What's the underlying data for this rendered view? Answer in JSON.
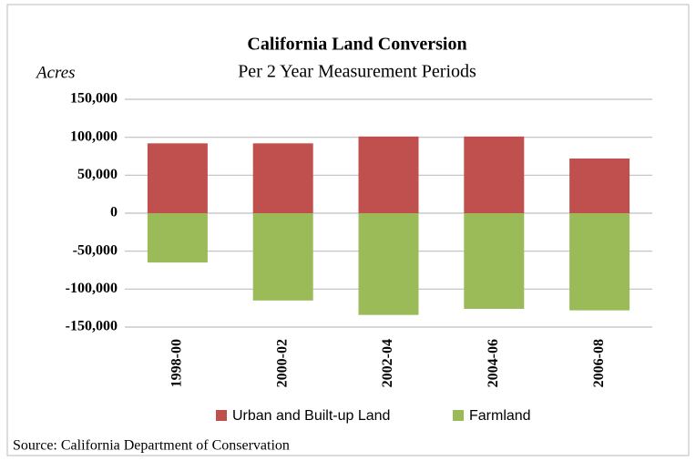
{
  "chart_data": {
    "type": "bar",
    "title": "California Land Conversion",
    "subtitle": "Per 2 Year Measurement Periods",
    "y_label": "Acres",
    "source": "Source:  California Department of Conservation",
    "categories": [
      "1998-00",
      "2000-02",
      "2002-04",
      "2004-06",
      "2006-08"
    ],
    "series": [
      {
        "name": "Urban and Built-up Land",
        "color": "#c0504d",
        "values": [
          92000,
          92000,
          101000,
          101000,
          72000
        ]
      },
      {
        "name": "Farmland",
        "color": "#9bbb59",
        "values": [
          -65000,
          -115000,
          -134000,
          -126000,
          -128000
        ]
      }
    ],
    "stacked": true,
    "ylim": [
      -150000,
      150000
    ],
    "yticks": [
      {
        "value": -150000,
        "label": "-150,000"
      },
      {
        "value": -100000,
        "label": "-100,000"
      },
      {
        "value": -50000,
        "label": "-50,000"
      },
      0,
      {
        "value": 50000,
        "label": "50,000"
      },
      {
        "value": 100000,
        "label": "100,000"
      },
      {
        "value": 150000,
        "label": "150,000"
      }
    ],
    "grid": true,
    "legend": "bottom"
  }
}
